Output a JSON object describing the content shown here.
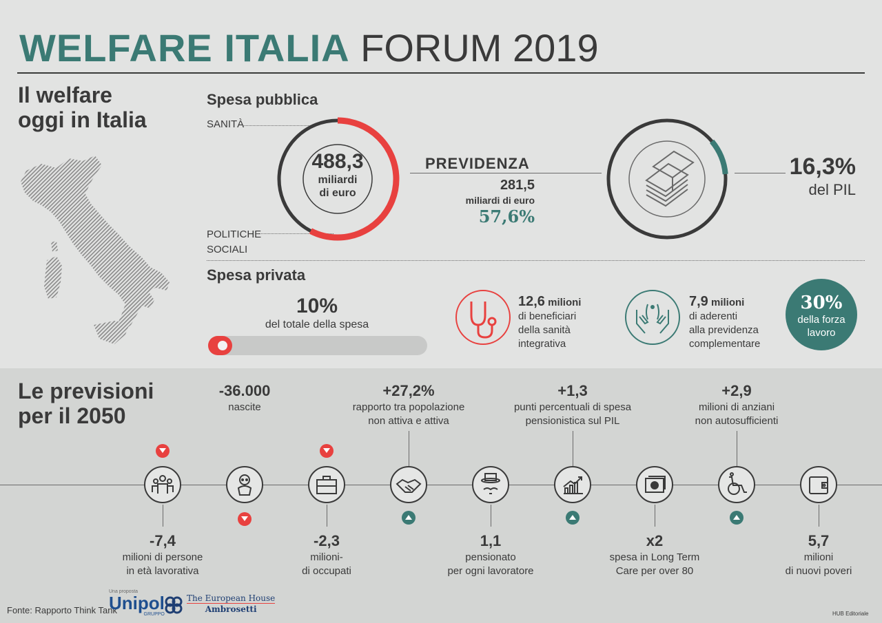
{
  "title": {
    "bold": "WELFARE ITALIA",
    "light": "FORUM 2019"
  },
  "today": {
    "heading_line1": "Il welfare",
    "heading_line2": "oggi in Italia",
    "spesa_pubblica": {
      "label": "Spesa pubblica",
      "sanita": "SANITÀ",
      "politiche_line1": "POLITICHE",
      "politiche_line2": "SOCIALI",
      "total_value": "488,3",
      "total_unit_line1": "miliardi",
      "total_unit_line2": "di euro",
      "previdenza_label": "PREVIDENZA",
      "previdenza_value": "281,5",
      "previdenza_unit": "miliardi di euro",
      "previdenza_pct": "57,6%",
      "previdenza_share": 0.576,
      "pil_value": "16,3%",
      "pil_label": "del PIL",
      "pil_share": 0.163
    },
    "spesa_privata": {
      "label": "Spesa privata",
      "pct": "10%",
      "pct_label": "del totale della spesa",
      "progress": 0.1,
      "sanita_num": "12,6",
      "sanita_unit": "milioni",
      "sanita_line1": "di beneficiari",
      "sanita_line2": "della sanità",
      "sanita_line3": "integrativa",
      "prev_num": "7,9",
      "prev_unit": "milioni",
      "prev_line1": "di aderenti",
      "prev_line2": "alla previdenza",
      "prev_line3": "complementare",
      "forza_pct": "30%",
      "forza_line1": "della forza",
      "forza_line2": "lavoro"
    }
  },
  "forecast": {
    "heading_line1": "Le previsioni",
    "heading_line2": "per il 2050",
    "items": [
      {
        "icon": "people-icon",
        "trend": "down",
        "value": "-7,4",
        "line1": "milioni di persone",
        "line2": "in età lavorativa"
      },
      {
        "icon": "baby-icon",
        "trend": "down",
        "value": "-36.000",
        "line1": "nascite",
        "line2": ""
      },
      {
        "icon": "briefcase-icon",
        "trend": "down",
        "value": "-2,3",
        "line1": "milioni-",
        "line2": "di occupati"
      },
      {
        "icon": "handshake-icon",
        "trend": "up",
        "value": "+27,2%",
        "line1": "rapporto tra popolazione",
        "line2": "non attiva e attiva"
      },
      {
        "icon": "pensioner-icon",
        "trend": "none",
        "value": "1,1",
        "line1": "pensionato",
        "line2": "per ogni lavoratore"
      },
      {
        "icon": "chart-up-icon",
        "trend": "up",
        "value": "+1,3",
        "line1": "punti percentuali di spesa",
        "line2": "pensionistica sul PIL"
      },
      {
        "icon": "money-icon",
        "trend": "none",
        "value": "x2",
        "line1": "spesa in Long Term",
        "line2": "Care per over 80"
      },
      {
        "icon": "wheelchair-icon",
        "trend": "up",
        "value": "+2,9",
        "line1": "milioni di anziani",
        "line2": "non autosufficienti"
      },
      {
        "icon": "wallet-icon",
        "trend": "none",
        "value": "5,7",
        "line1": "milioni",
        "line2": "di nuovi poveri"
      }
    ]
  },
  "footer": {
    "source": "Fonte: Rapporto Think Tank",
    "unipol_small": "Una proposta",
    "unipol": "Unipol",
    "unipol_sub": "GRUPPO",
    "teha_line1": "The European House",
    "teha_line2": "Ambrosetti",
    "credit": "HUB Editoriale"
  },
  "colors": {
    "teal": "#3b7a74",
    "red": "#e8413f",
    "dark": "#3a3a3a"
  }
}
